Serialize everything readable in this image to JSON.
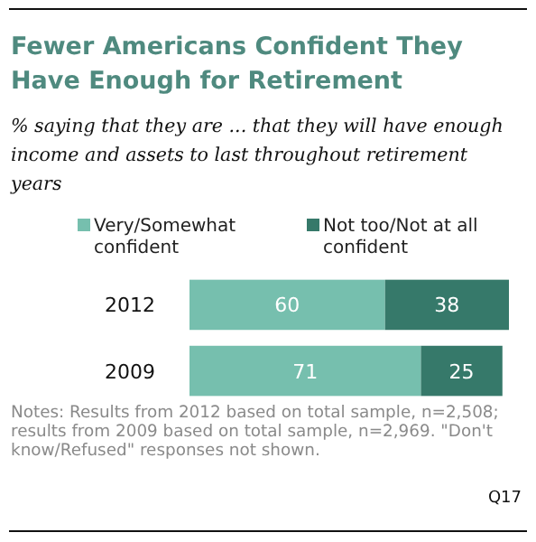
{
  "chart_data": {
    "type": "bar",
    "orientation": "horizontal",
    "title": "Fewer Americans Confident They Have Enough for Retirement",
    "subtitle": "% saying that they are ... that they will have enough income and assets to last throughout retirement years",
    "categories": [
      "2012",
      "2009"
    ],
    "series": [
      {
        "name": "Very/Somewhat confident",
        "color": "#76bfae",
        "values": [
          60,
          71
        ]
      },
      {
        "name": "Not too/Not at all confident",
        "color": "#36796a",
        "values": [
          38,
          25
        ]
      }
    ],
    "stacked": true,
    "data_labels": true,
    "legend": "top",
    "grid": false,
    "annotations": [
      "Notes: Results from 2012 based on total sample, n=2,508; results from 2009 based on total sample, n=2,969. \"Don't know/Refused\" responses not shown.",
      "Q17"
    ]
  }
}
